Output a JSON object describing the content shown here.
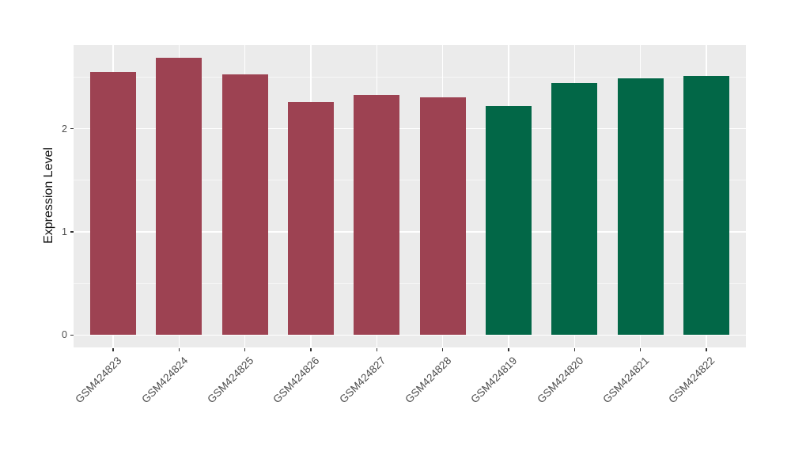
{
  "chart": {
    "panel_bg": "#EBEBEB",
    "page_bg": "#FFFFFF",
    "grid_major_color": "#FFFFFF",
    "grid_minor_color": "#F6F6F6",
    "axis_text_color": "#4D4D4D",
    "axis_title_color": "#111111",
    "tick_mark_color": "#333333"
  },
  "chart_data": {
    "type": "bar",
    "title": "",
    "xlabel": "",
    "ylabel": "Expression Level",
    "categories": [
      "GSM424823",
      "GSM424824",
      "GSM424825",
      "GSM424826",
      "GSM424827",
      "GSM424828",
      "GSM424819",
      "GSM424820",
      "GSM424821",
      "GSM424822"
    ],
    "values": [
      2.55,
      2.69,
      2.53,
      2.26,
      2.33,
      2.3,
      2.22,
      2.44,
      2.49,
      2.51
    ],
    "bar_colors": [
      "#9D4252",
      "#9D4252",
      "#9D4252",
      "#9D4252",
      "#9D4252",
      "#9D4252",
      "#026747",
      "#026747",
      "#026747",
      "#026747"
    ],
    "groups": [
      {
        "name": "maroon-group",
        "color": "#9D4252",
        "categories": [
          "GSM424823",
          "GSM424824",
          "GSM424825",
          "GSM424826",
          "GSM424827",
          "GSM424828"
        ]
      },
      {
        "name": "green-group",
        "color": "#026747",
        "categories": [
          "GSM424819",
          "GSM424820",
          "GSM424821",
          "GSM424822"
        ]
      }
    ],
    "yticks": [
      0,
      1,
      2
    ],
    "yticks_minor": [
      0.5,
      1.5,
      2.5
    ],
    "ylim": [
      -0.12,
      2.81
    ],
    "bar_width_frac": 0.7,
    "grid": true,
    "legend_position": "none",
    "x_label_rotation_deg": 45
  }
}
